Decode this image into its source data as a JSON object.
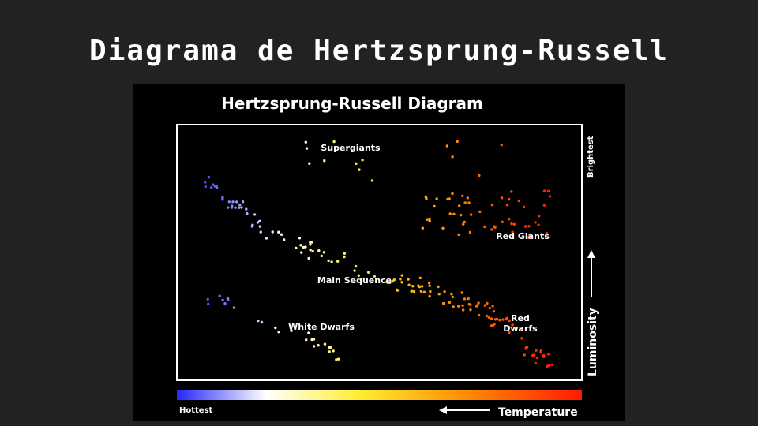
{
  "slide": {
    "title": "Diagrama de Hertzsprung-Russell"
  },
  "diagram": {
    "title": "Hertzsprung-Russell Diagram",
    "y_axis_label": "Luminosity",
    "y_axis_top_label": "Brightest",
    "x_axis_label": "Temperature",
    "x_axis_left_label": "Hottest",
    "regions": {
      "supergiants": "Supergiants",
      "red_giants": "Red Giants",
      "main_sequence": "Main Sequence",
      "white_dwarfs": "White Dwarfs",
      "red_dwarfs_line1": "Red",
      "red_dwarfs_line2": "Dwarfs"
    },
    "colors": {
      "background": "#000000",
      "frame": "#ffffff",
      "hot": "#3b3bff",
      "white": "#ffffff",
      "yellow": "#ffee33",
      "orange": "#ff8a00",
      "red": "#ff1a00"
    }
  }
}
